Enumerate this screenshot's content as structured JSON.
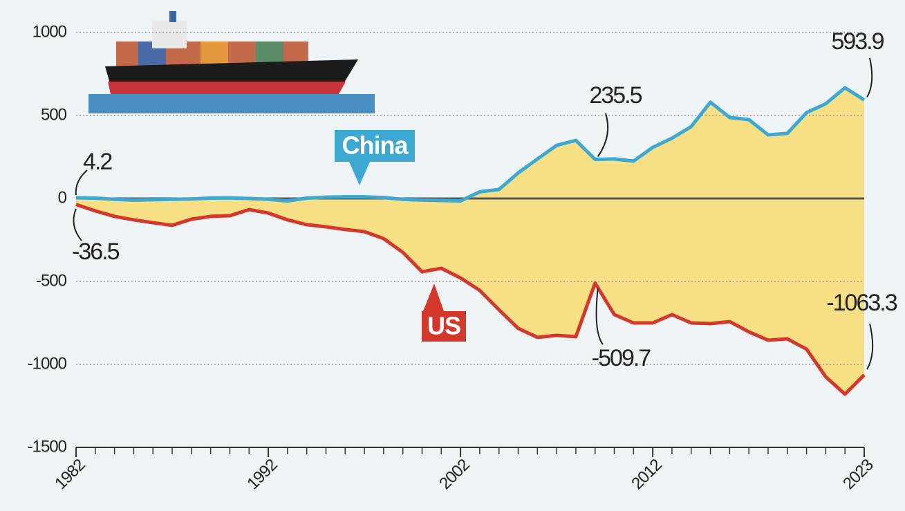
{
  "chart_data": {
    "type": "line",
    "x": [
      1982,
      1983,
      1984,
      1985,
      1986,
      1987,
      1988,
      1989,
      1990,
      1991,
      1992,
      1993,
      1994,
      1995,
      1996,
      1997,
      1998,
      1999,
      2000,
      2001,
      2002,
      2003,
      2004,
      2005,
      2006,
      2007,
      2008,
      2009,
      2010,
      2011,
      2012,
      2013,
      2014,
      2015,
      2016,
      2017,
      2018,
      2019,
      2020,
      2021,
      2022,
      2023
    ],
    "xlim": [
      1982,
      2023
    ],
    "xticks": [
      1982,
      1992,
      2002,
      2012,
      2023
    ],
    "ylim": [
      -1500,
      1000
    ],
    "yticks": [
      -1500,
      -1000,
      -500,
      0,
      500,
      1000
    ],
    "grid": true,
    "fill_color": "#f7df86",
    "series": [
      {
        "name": "China",
        "color": "#3da8d2",
        "values": [
          4.2,
          2,
          -5,
          -10,
          -8,
          -5,
          -3,
          2,
          3,
          0,
          -5,
          -15,
          2,
          8,
          10,
          10,
          5,
          -5,
          -10,
          -12,
          -15,
          40,
          54,
          154,
          238,
          320,
          350,
          235.5,
          238,
          225,
          308,
          363,
          433,
          580,
          488,
          475,
          383,
          392,
          517,
          571,
          667,
          593.9
        ]
      },
      {
        "name": "US",
        "color": "#d3382a",
        "values": [
          -36.5,
          -75,
          -108,
          -129,
          -146,
          -162,
          -125,
          -108,
          -104,
          -67,
          -88,
          -129,
          -158,
          -171,
          -187,
          -200,
          -242,
          -325,
          -442,
          -421,
          -479,
          -554,
          -671,
          -783,
          -837,
          -825,
          -833,
          -509.7,
          -700,
          -750,
          -750,
          -700,
          -750,
          -754,
          -742,
          -804,
          -854,
          -846,
          -908,
          -1075,
          -1179,
          -1063.3
        ]
      }
    ]
  }
}
